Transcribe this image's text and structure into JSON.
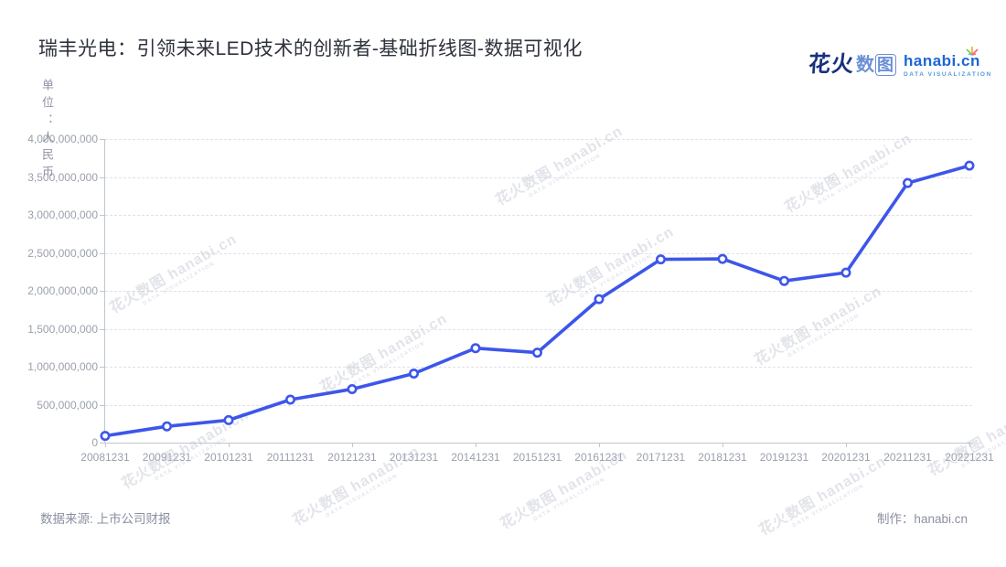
{
  "header": {
    "title": "瑞丰光电：引领未来LED技术的创新者-基础折线图-数据可视化"
  },
  "brand": {
    "logo_cn_primary": "花火",
    "logo_cn_secondary": "数",
    "logo_cn_boxed": "图",
    "logo_domain": "hanabi.cn",
    "logo_tagline": "DATA VISUALIZATION",
    "colors": {
      "primary_dark": "#17317f",
      "secondary_blue": "#6b8fd6",
      "domain_blue": "#1c66d6"
    }
  },
  "watermark": {
    "line1": "花火数图 hanabi.cn",
    "line2": "DATA VISUALIZATION"
  },
  "chart_data": {
    "type": "line",
    "title": "瑞丰光电：引领未来LED技术的创新者-基础折线图-数据可视化",
    "unit_label": "单位：人民币",
    "xlabel": "",
    "ylabel": "单位：人民币",
    "categories": [
      "20081231",
      "20091231",
      "20101231",
      "20111231",
      "20121231",
      "20131231",
      "20141231",
      "20151231",
      "20161231",
      "20171231",
      "20181231",
      "20191231",
      "20201231",
      "20211231",
      "20221231"
    ],
    "series": [
      {
        "name": "",
        "values": [
          89000000,
          215000000,
          296000000,
          566000000,
          705000000,
          910000000,
          1245000000,
          1185000000,
          1890000000,
          2415000000,
          2420000000,
          2130000000,
          2240000000,
          3420000000,
          3650000000
        ]
      }
    ],
    "ylim": [
      0,
      4000000000
    ],
    "ytick_interval": 500000000,
    "ytick_labels": [
      "0",
      "500,000,000",
      "1,000,000,000",
      "1,500,000,000",
      "2,000,000,000",
      "2,500,000,000",
      "3,000,000,000",
      "3,500,000,000",
      "4,000,000,000"
    ],
    "grid": true,
    "legend_position": "none",
    "line_color": "#3d56e9",
    "marker": "circle-white-fill"
  },
  "footer": {
    "source": "数据来源: 上市公司财报",
    "credit": "制作：hanabi.cn"
  }
}
